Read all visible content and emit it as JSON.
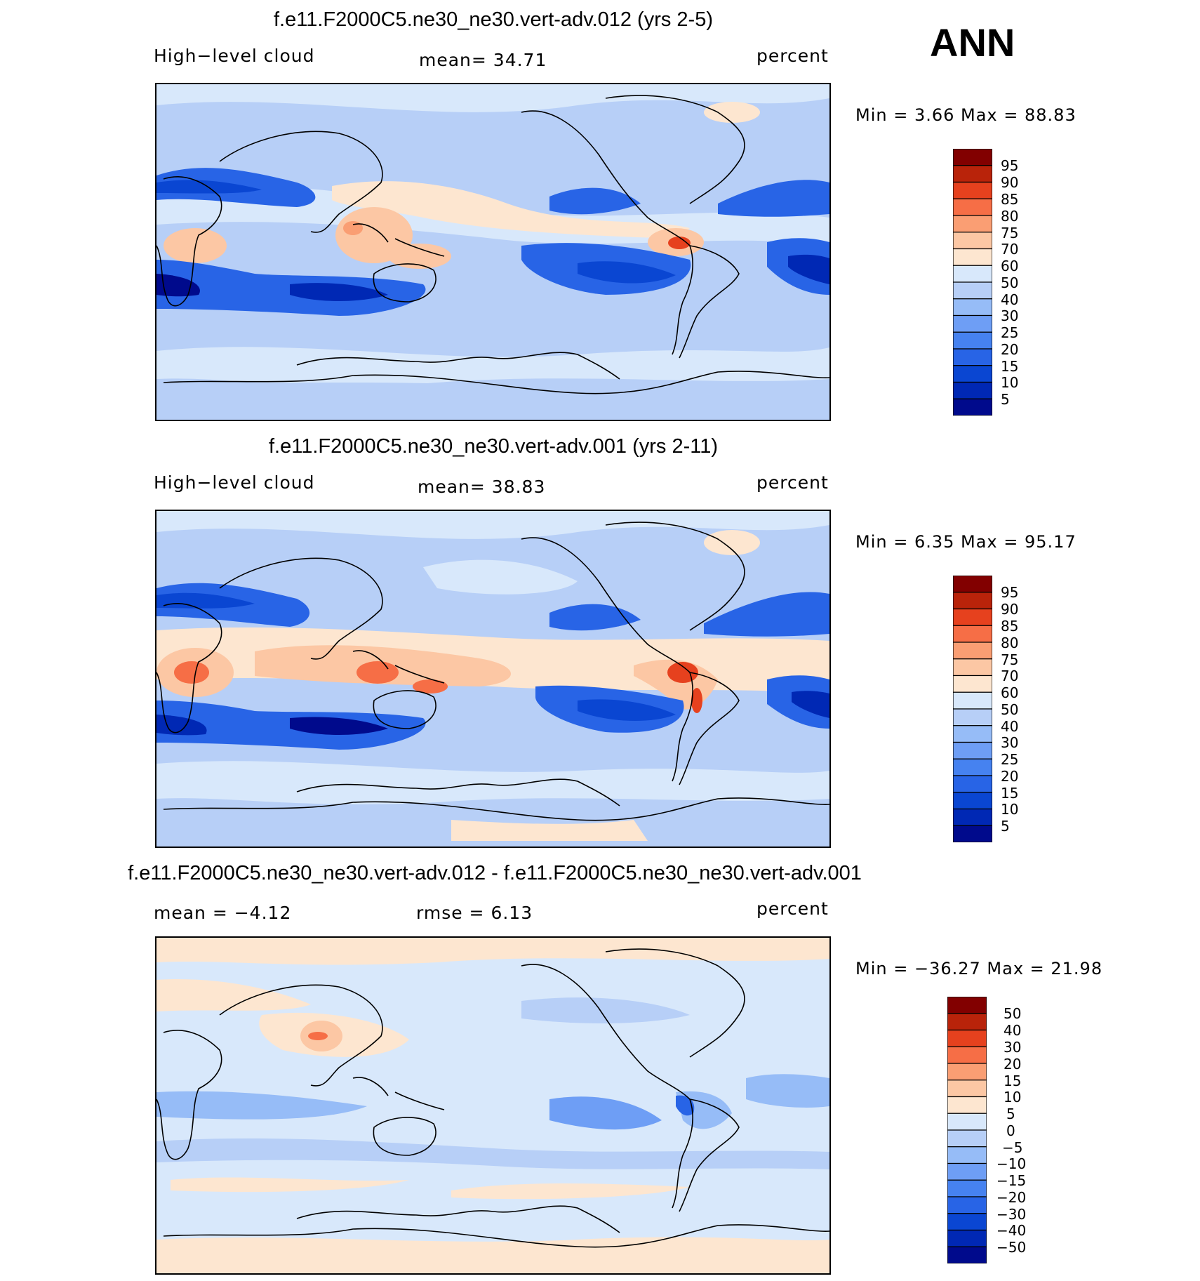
{
  "season": "ANN",
  "panels": [
    {
      "title": "f.e11.F2000C5.ne30_ne30.vert-adv.012 (yrs 2-5)",
      "left_label": "High−level cloud",
      "center_label": "mean=   34.71",
      "right_label": "percent",
      "minmax": "Min =    3.66 Max =   88.83",
      "colorbar_levels": [
        "95",
        "90",
        "85",
        "80",
        "75",
        "70",
        "60",
        "50",
        "40",
        "30",
        "25",
        "20",
        "15",
        "10",
        "5"
      ]
    },
    {
      "title": "f.e11.F2000C5.ne30_ne30.vert-adv.001 (yrs 2-11)",
      "left_label": "High−level cloud",
      "center_label": "mean=   38.83",
      "right_label": "percent",
      "minmax": "Min =    6.35 Max =   95.17",
      "colorbar_levels": [
        "95",
        "90",
        "85",
        "80",
        "75",
        "70",
        "60",
        "50",
        "40",
        "30",
        "25",
        "20",
        "15",
        "10",
        "5"
      ]
    },
    {
      "title": "f.e11.F2000C5.ne30_ne30.vert-adv.012 - f.e11.F2000C5.ne30_ne30.vert-adv.001",
      "left_label": "mean =   −4.12",
      "center_label": "rmse =    6.13",
      "right_label": "percent",
      "minmax": "Min = −36.27 Max =   21.98",
      "colorbar_levels": [
        "50",
        "40",
        "30",
        "20",
        "15",
        "10",
        "5",
        "0",
        "−5",
        "−10",
        "−15",
        "−20",
        "−30",
        "−40",
        "−50"
      ]
    }
  ],
  "colors": {
    "abs_scale": [
      "#000a8c",
      "#0028b4",
      "#0a46d2",
      "#2864e6",
      "#4682f0",
      "#6e9ef5",
      "#96bcf7",
      "#b7cff7",
      "#d8e8fb",
      "#fde6d0",
      "#fcc7a4",
      "#fa9e73",
      "#f66e46",
      "#e6411e",
      "#b9230a",
      "#820000"
    ],
    "diff_scale": [
      "#000a8c",
      "#0028b4",
      "#0a46d2",
      "#2864e6",
      "#4682f0",
      "#6e9ef5",
      "#96bcf7",
      "#b7cff7",
      "#d8e8fb",
      "#fde6d0",
      "#fcc7a4",
      "#fa9e73",
      "#f66e46",
      "#e6411e",
      "#b9230a",
      "#820000"
    ]
  }
}
